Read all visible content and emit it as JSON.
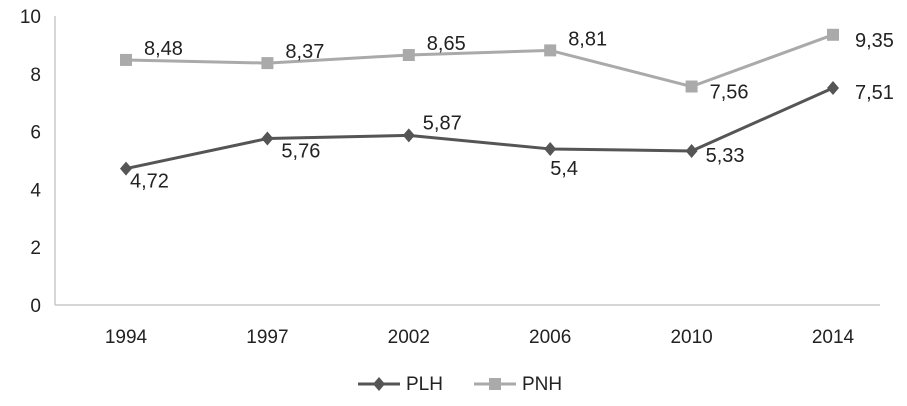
{
  "chart_data": {
    "type": "line",
    "categories": [
      "1994",
      "1997",
      "2002",
      "2006",
      "2010",
      "2014"
    ],
    "ylim": [
      0,
      10
    ],
    "yticks": [
      "0",
      "2",
      "4",
      "6",
      "8",
      "10"
    ],
    "grid": false,
    "legend_position": "bottom",
    "series": [
      {
        "name": "PLH",
        "values": [
          4.72,
          5.76,
          5.87,
          5.4,
          5.33,
          7.51
        ],
        "labels": [
          "4,72",
          "5,76",
          "5,87",
          "5,4",
          "5,33",
          "7,51"
        ],
        "color": "#555555",
        "marker": "diamond"
      },
      {
        "name": "PNH",
        "values": [
          8.48,
          8.37,
          8.65,
          8.81,
          7.56,
          9.35
        ],
        "labels": [
          "8,48",
          "8,37",
          "8,65",
          "8,81",
          "7,56",
          "9,35"
        ],
        "color": "#aaaaaa",
        "marker": "square"
      }
    ]
  }
}
